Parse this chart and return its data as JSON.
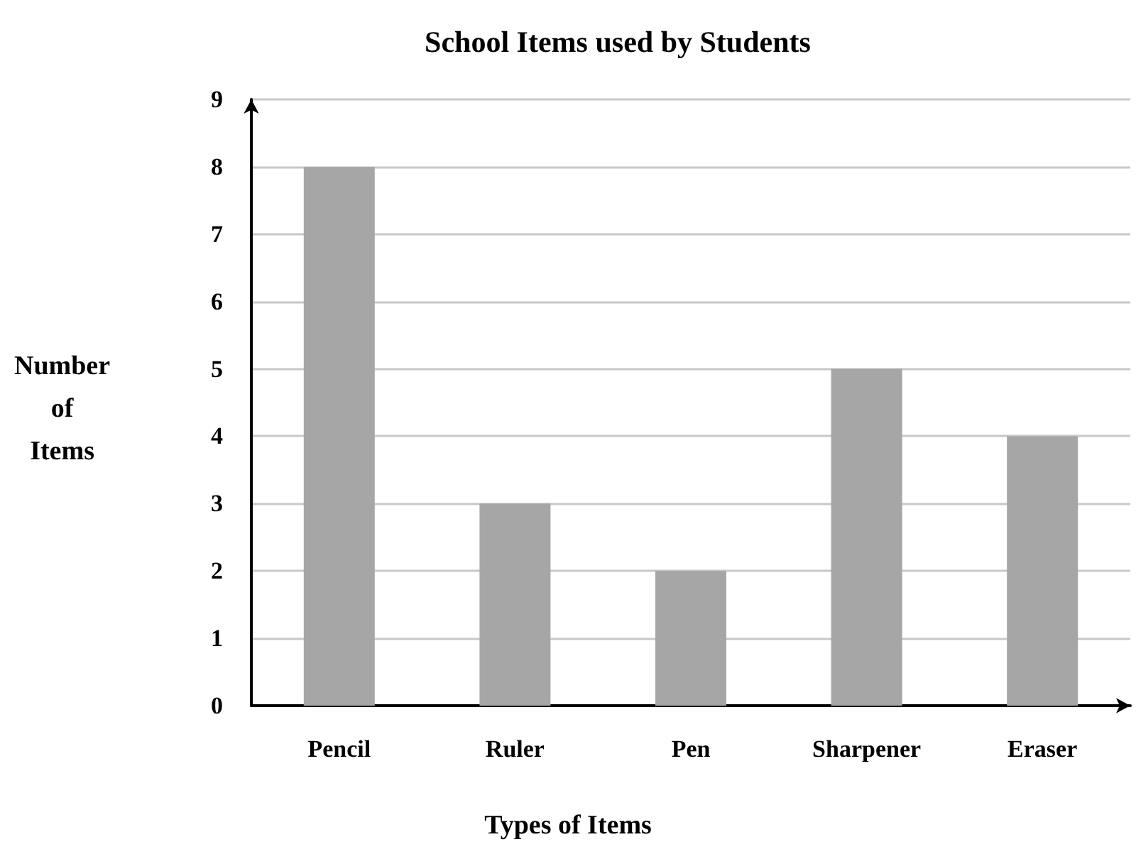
{
  "chart_data": {
    "type": "bar",
    "title": "School Items used by Students",
    "xlabel": "Types of Items",
    "ylabel": "Number of Items",
    "categories": [
      "Pencil",
      "Ruler",
      "Pen",
      "Sharpener",
      "Eraser"
    ],
    "values": [
      8,
      3,
      2,
      5,
      4
    ],
    "color": "#a6a6a6",
    "ylim": [
      0,
      9
    ],
    "yticks": [
      0,
      1,
      2,
      3,
      4,
      5,
      6,
      7,
      8,
      9
    ],
    "grid": "y"
  }
}
